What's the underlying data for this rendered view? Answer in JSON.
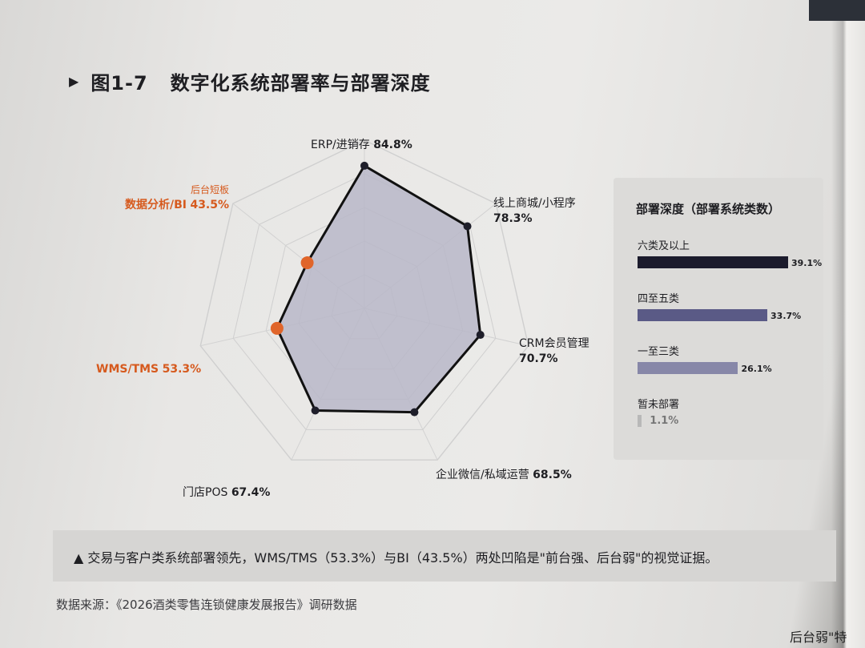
{
  "figure": {
    "number": "图1-7",
    "title": "数字化系统部署率与部署深度"
  },
  "chart_data": [
    {
      "type": "radar",
      "axes": [
        "ERP/进销存",
        "线上商城/小程序",
        "CRM会员管理",
        "企业微信/私域运营",
        "门店POS",
        "WMS/TMS",
        "数据分析/BI"
      ],
      "values": [
        84.8,
        78.3,
        70.7,
        68.5,
        67.4,
        53.3,
        43.5
      ],
      "value_labels": [
        "84.8%",
        "78.3%",
        "70.7%",
        "68.5%",
        "67.4%",
        "53.3%",
        "43.5%"
      ],
      "highlight": [
        "WMS/TMS",
        "数据分析/BI"
      ],
      "highlight_note": "后台短板",
      "rmax": 100,
      "rings": 5,
      "colors": {
        "fill": "#b8b7c8",
        "line": "#111111",
        "point": "#1e1e2a",
        "highlight": "#e0652a"
      }
    },
    {
      "type": "bar",
      "title": "部署深度（部署系统类数）",
      "categories": [
        "六类及以上",
        "四至五类",
        "一至三类",
        "暂未部署"
      ],
      "values": [
        39.1,
        33.7,
        26.1,
        1.1
      ],
      "value_labels": [
        "39.1%",
        "33.7%",
        "26.1%",
        "1.1%"
      ],
      "colors": [
        "#1b1b2c",
        "#5a5a86",
        "#8787a8",
        "#b8b8b8"
      ]
    }
  ],
  "caption": "▲ 交易与客户类系统部署领先，WMS/TMS（53.3%）与BI（43.5%）两处凹陷是\"前台强、后台弱\"的视觉证据。",
  "source": "数据来源：《2026酒类零售连锁健康发展报告》调研数据",
  "page_corner_text": "后台弱\"特"
}
